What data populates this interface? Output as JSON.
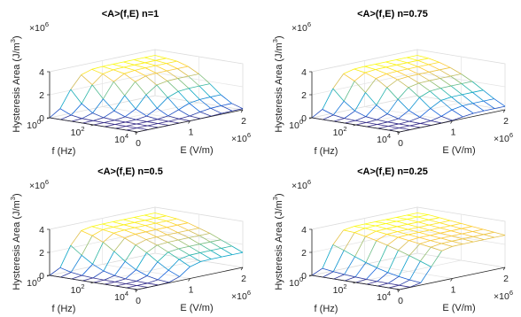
{
  "figure": {
    "background": "#ffffff",
    "colormap": "parula",
    "colormap_stops": [
      "#352a87",
      "#0f5cdd",
      "#1481d6",
      "#06a4ca",
      "#2eb7a4",
      "#87bf77",
      "#d1bb59",
      "#fec832",
      "#f9fb0e"
    ],
    "axis_color": "#222222"
  },
  "chart_data": [
    {
      "type": "surface",
      "title": "<A>(f,E) n=1",
      "xlabel": "E (V/m)",
      "ylabel": "f (Hz)",
      "zlabel": "Hysteresis Area (J/m3)",
      "x_exponent_label": "×10",
      "x_exponent": "6",
      "z_exponent_label": "×10",
      "z_exponent": "6",
      "x_ticks": [
        "0",
        "1",
        "2"
      ],
      "y_ticks": [
        "10",
        "10",
        "10"
      ],
      "y_tick_exponents": [
        "0",
        "2",
        "4"
      ],
      "z_ticks": [
        "0",
        "2",
        "4"
      ],
      "xlim": [
        0,
        2
      ],
      "ylim_log10": [
        0,
        4
      ],
      "zlim": [
        0,
        4
      ],
      "y_scale": "log",
      "grid": true,
      "n": 1,
      "E": [
        0,
        0.2,
        0.4,
        0.6,
        0.8,
        1.0,
        1.2,
        1.4,
        1.6,
        1.8,
        2.0
      ],
      "log10_f": [
        0,
        0.5,
        1,
        1.5,
        2,
        2.5,
        3,
        3.5,
        4
      ],
      "z_at_E_max": [
        3.5,
        3.4,
        3.3,
        3.0,
        2.5,
        1.8,
        1.0,
        0.4,
        0.1
      ]
    },
    {
      "type": "surface",
      "title": "<A>(f,E) n=0.75",
      "xlabel": "E (V/m)",
      "ylabel": "f (Hz)",
      "zlabel": "Hysteresis Area (J/m3)",
      "x_exponent_label": "×10",
      "x_exponent": "6",
      "z_exponent_label": "×10",
      "z_exponent": "6",
      "x_ticks": [
        "0",
        "1",
        "2"
      ],
      "y_ticks": [
        "10",
        "10",
        "10"
      ],
      "y_tick_exponents": [
        "0",
        "2",
        "4"
      ],
      "z_ticks": [
        "0",
        "2",
        "4"
      ],
      "xlim": [
        0,
        2
      ],
      "ylim_log10": [
        0,
        4
      ],
      "zlim": [
        0,
        4
      ],
      "y_scale": "log",
      "grid": true,
      "n": 0.75,
      "E": [
        0,
        0.2,
        0.4,
        0.6,
        0.8,
        1.0,
        1.2,
        1.4,
        1.6,
        1.8,
        2.0
      ],
      "log10_f": [
        0,
        0.5,
        1,
        1.5,
        2,
        2.5,
        3,
        3.5,
        4
      ],
      "z_at_E_max": [
        3.5,
        3.4,
        3.2,
        2.9,
        2.5,
        2.0,
        1.4,
        0.8,
        0.3
      ]
    },
    {
      "type": "surface",
      "title": "<A>(f,E) n=0.5",
      "xlabel": "E (V/m)",
      "ylabel": "f (Hz)",
      "zlabel": "Hysteresis Area (J/m3)",
      "x_exponent_label": "×10",
      "x_exponent": "6",
      "z_exponent_label": "×10",
      "z_exponent": "6",
      "x_ticks": [
        "0",
        "1",
        "2"
      ],
      "y_ticks": [
        "10",
        "10",
        "10"
      ],
      "y_tick_exponents": [
        "0",
        "2",
        "4"
      ],
      "z_ticks": [
        "0",
        "2",
        "4"
      ],
      "xlim": [
        0,
        2
      ],
      "ylim_log10": [
        0,
        4
      ],
      "zlim": [
        0,
        4
      ],
      "y_scale": "log",
      "grid": true,
      "n": 0.5,
      "E": [
        0,
        0.2,
        0.4,
        0.6,
        0.8,
        1.0,
        1.2,
        1.4,
        1.6,
        1.8,
        2.0
      ],
      "log10_f": [
        0,
        0.5,
        1,
        1.5,
        2,
        2.5,
        3,
        3.5,
        4
      ],
      "z_at_E_max": [
        3.5,
        3.4,
        3.3,
        3.1,
        2.8,
        2.5,
        2.1,
        1.7,
        1.3
      ]
    },
    {
      "type": "surface",
      "title": "<A>(f,E) n=0.25",
      "xlabel": "E (V/m)",
      "ylabel": "f (Hz)",
      "zlabel": "Hysteresis Area (J/m3)",
      "x_exponent_label": "×10",
      "x_exponent": "6",
      "z_exponent_label": "×10",
      "z_exponent": "6",
      "x_ticks": [
        "0",
        "1",
        "2"
      ],
      "y_ticks": [
        "10",
        "10",
        "10"
      ],
      "y_tick_exponents": [
        "0",
        "2",
        "4"
      ],
      "z_ticks": [
        "0",
        "2",
        "4"
      ],
      "xlim": [
        0,
        2
      ],
      "ylim_log10": [
        0,
        4
      ],
      "zlim": [
        0,
        4
      ],
      "y_scale": "log",
      "grid": true,
      "n": 0.25,
      "E": [
        0,
        0.2,
        0.4,
        0.6,
        0.8,
        1.0,
        1.2,
        1.4,
        1.6,
        1.8,
        2.0
      ],
      "log10_f": [
        0,
        0.5,
        1,
        1.5,
        2,
        2.5,
        3,
        3.5,
        4
      ],
      "z_at_E_max": [
        3.5,
        3.5,
        3.4,
        3.3,
        3.2,
        3.1,
        3.0,
        2.9,
        2.8
      ]
    }
  ]
}
